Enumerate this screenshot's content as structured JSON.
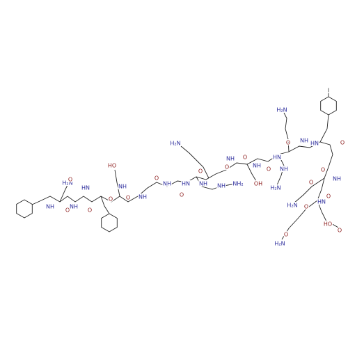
{
  "atom_labels": [
    "H₂N",
    "O",
    "NH",
    "O",
    "NH",
    "O",
    "HN",
    "O",
    "HO",
    "NH",
    "O",
    "NH",
    "O",
    "NH",
    "O",
    "HN",
    "O",
    "NH",
    "NH",
    "NH₂",
    "H₂N",
    "O",
    "O",
    "NH",
    "OH",
    "NH",
    "O",
    "HN",
    "H₂N",
    "O",
    "NH",
    "NH",
    "H₂N",
    "HN",
    "I",
    "O",
    "O",
    "NH",
    "O",
    "HN",
    "O",
    "O",
    "H₂N",
    "HO",
    "O",
    "O",
    "H₂N"
  ]
}
